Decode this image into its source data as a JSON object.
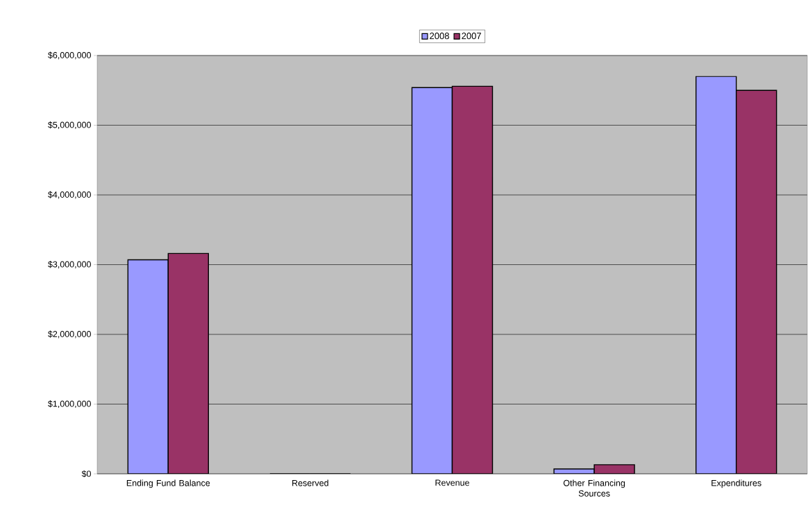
{
  "chart_data": {
    "type": "bar",
    "categories": [
      "Ending Fund Balance",
      "Reserved",
      "Revenue",
      "Other Financing Sources",
      "Expenditures"
    ],
    "series": [
      {
        "name": "2008",
        "color": "#9999ff",
        "values": [
          3070000,
          0,
          5540000,
          70000,
          5700000
        ]
      },
      {
        "name": "2007",
        "color": "#993366",
        "values": [
          3160000,
          0,
          5560000,
          130000,
          5500000
        ]
      }
    ],
    "ylim": [
      0,
      6000000
    ],
    "yticks": [
      {
        "value": 0,
        "label": "$0"
      },
      {
        "value": 1000000,
        "label": "$1,000,000"
      },
      {
        "value": 2000000,
        "label": "$2,000,000"
      },
      {
        "value": 3000000,
        "label": "$3,000,000"
      },
      {
        "value": 4000000,
        "label": "$4,000,000"
      },
      {
        "value": 5000000,
        "label": "$5,000,000"
      },
      {
        "value": 6000000,
        "label": "$6,000,000"
      }
    ],
    "grid": "y",
    "legend": "top"
  }
}
